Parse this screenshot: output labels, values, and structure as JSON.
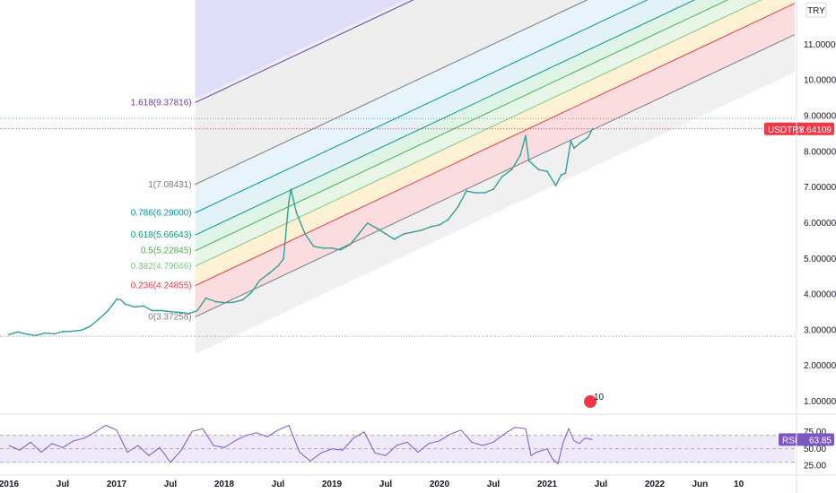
{
  "chart_data": {
    "type": "line",
    "symbol": "USDTRY",
    "currency": "TRY",
    "last_price": "8.64109",
    "price_axis": {
      "min": 0.7,
      "max": 12.0,
      "ticks": [
        {
          "v": 1,
          "label": "1.00000"
        },
        {
          "v": 2,
          "label": "2.00000"
        },
        {
          "v": 3,
          "label": "3.00000"
        },
        {
          "v": 4,
          "label": "4.00000"
        },
        {
          "v": 5,
          "label": "5.00000"
        },
        {
          "v": 6,
          "label": "6.00000"
        },
        {
          "v": 7,
          "label": "7.00000"
        },
        {
          "v": 8,
          "label": "8.00000"
        },
        {
          "v": 9,
          "label": "9.00000"
        },
        {
          "v": 10,
          "label": "10.00000"
        },
        {
          "v": 11,
          "label": "11.00000"
        }
      ],
      "reference_lines": [
        2.83,
        8.93
      ]
    },
    "x_axis": {
      "min": 2016.0,
      "max": 2023.3,
      "ticks": [
        {
          "t": 2016.0,
          "label": "2016"
        },
        {
          "t": 2016.5,
          "label": "Jul"
        },
        {
          "t": 2017.0,
          "label": "2017"
        },
        {
          "t": 2017.5,
          "label": "Jul"
        },
        {
          "t": 2018.0,
          "label": "2018"
        },
        {
          "t": 2018.5,
          "label": "Jul"
        },
        {
          "t": 2019.0,
          "label": "2019"
        },
        {
          "t": 2019.5,
          "label": "Jul"
        },
        {
          "t": 2020.0,
          "label": "2020"
        },
        {
          "t": 2020.5,
          "label": "Jul"
        },
        {
          "t": 2021.0,
          "label": "2021"
        },
        {
          "t": 2021.5,
          "label": "Jul"
        },
        {
          "t": 2022.0,
          "label": "2022"
        },
        {
          "t": 2022.42,
          "label": "Jun"
        },
        {
          "t": 2022.78,
          "label": "10"
        }
      ]
    },
    "series": [
      {
        "values": [
          [
            2016.0,
            2.88
          ],
          [
            2016.08,
            2.95
          ],
          [
            2016.17,
            2.89
          ],
          [
            2016.25,
            2.85
          ],
          [
            2016.33,
            2.92
          ],
          [
            2016.42,
            2.9
          ],
          [
            2016.5,
            2.96
          ],
          [
            2016.58,
            2.97
          ],
          [
            2016.67,
            3.0
          ],
          [
            2016.75,
            3.1
          ],
          [
            2016.83,
            3.3
          ],
          [
            2016.92,
            3.55
          ],
          [
            2017.0,
            3.87
          ],
          [
            2017.04,
            3.85
          ],
          [
            2017.08,
            3.73
          ],
          [
            2017.17,
            3.65
          ],
          [
            2017.25,
            3.68
          ],
          [
            2017.33,
            3.55
          ],
          [
            2017.42,
            3.55
          ],
          [
            2017.5,
            3.52
          ],
          [
            2017.58,
            3.5
          ],
          [
            2017.67,
            3.47
          ],
          [
            2017.75,
            3.55
          ],
          [
            2017.83,
            3.9
          ],
          [
            2017.92,
            3.8
          ],
          [
            2018.0,
            3.77
          ],
          [
            2018.08,
            3.78
          ],
          [
            2018.17,
            3.85
          ],
          [
            2018.25,
            4.05
          ],
          [
            2018.33,
            4.4
          ],
          [
            2018.42,
            4.6
          ],
          [
            2018.5,
            4.8
          ],
          [
            2018.55,
            5.0
          ],
          [
            2018.6,
            6.6
          ],
          [
            2018.62,
            6.95
          ],
          [
            2018.67,
            6.3
          ],
          [
            2018.75,
            5.7
          ],
          [
            2018.83,
            5.35
          ],
          [
            2018.92,
            5.3
          ],
          [
            2019.0,
            5.3
          ],
          [
            2019.08,
            5.25
          ],
          [
            2019.17,
            5.4
          ],
          [
            2019.25,
            5.7
          ],
          [
            2019.33,
            6.0
          ],
          [
            2019.42,
            5.85
          ],
          [
            2019.5,
            5.7
          ],
          [
            2019.58,
            5.55
          ],
          [
            2019.67,
            5.7
          ],
          [
            2019.75,
            5.75
          ],
          [
            2019.83,
            5.8
          ],
          [
            2019.92,
            5.9
          ],
          [
            2020.0,
            5.95
          ],
          [
            2020.08,
            6.1
          ],
          [
            2020.17,
            6.45
          ],
          [
            2020.25,
            6.9
          ],
          [
            2020.33,
            6.85
          ],
          [
            2020.42,
            6.85
          ],
          [
            2020.5,
            6.95
          ],
          [
            2020.58,
            7.3
          ],
          [
            2020.67,
            7.5
          ],
          [
            2020.75,
            7.9
          ],
          [
            2020.8,
            8.45
          ],
          [
            2020.83,
            7.75
          ],
          [
            2020.92,
            7.5
          ],
          [
            2021.0,
            7.45
          ],
          [
            2021.08,
            7.05
          ],
          [
            2021.13,
            7.35
          ],
          [
            2021.17,
            7.4
          ],
          [
            2021.22,
            8.3
          ],
          [
            2021.25,
            8.1
          ],
          [
            2021.33,
            8.3
          ],
          [
            2021.38,
            8.4
          ],
          [
            2021.42,
            8.64
          ]
        ]
      }
    ],
    "fibonacci_channel": {
      "levels": [
        {
          "ratio": "0",
          "label": "0(3.37258)",
          "price": 3.37258,
          "color": "#787b86"
        },
        {
          "ratio": "0.236",
          "label": "0.236(4.24855)",
          "price": 4.24855,
          "color": "#f23645"
        },
        {
          "ratio": "0.382",
          "label": "0.382(4.79046)",
          "price": 4.79046,
          "color": "#81c784"
        },
        {
          "ratio": "0.5",
          "label": "0.5(5.22845)",
          "price": 5.22845,
          "color": "#4caf50"
        },
        {
          "ratio": "0.618",
          "label": "0.618(5.66643)",
          "price": 5.66643,
          "color": "#089981"
        },
        {
          "ratio": "0.786",
          "label": "0.786(6.29000)",
          "price": 6.29,
          "color": "#0097a7"
        },
        {
          "ratio": "1",
          "label": "1(7.08431)",
          "price": 7.08431,
          "color": "#787b86"
        },
        {
          "ratio": "1.618",
          "label": "1.618(9.37816)",
          "price": 9.37816,
          "color": "#673ab7"
        }
      ],
      "anchor_time": 2017.73,
      "slope_per_year": 1.42
    },
    "rsi": {
      "label": "RSI",
      "value_label": "63.85",
      "ticks": [
        {
          "v": 75,
          "label": "75.00"
        },
        {
          "v": 50,
          "label": "50.00"
        },
        {
          "v": 25,
          "label": "25.00"
        }
      ],
      "bands": [
        70,
        30
      ],
      "values": [
        [
          2016.0,
          55
        ],
        [
          2016.1,
          48
        ],
        [
          2016.2,
          60
        ],
        [
          2016.3,
          45
        ],
        [
          2016.4,
          58
        ],
        [
          2016.5,
          52
        ],
        [
          2016.6,
          62
        ],
        [
          2016.7,
          66
        ],
        [
          2016.8,
          75
        ],
        [
          2016.9,
          85
        ],
        [
          2017.0,
          78
        ],
        [
          2017.1,
          45
        ],
        [
          2017.2,
          55
        ],
        [
          2017.3,
          40
        ],
        [
          2017.4,
          52
        ],
        [
          2017.5,
          30
        ],
        [
          2017.6,
          48
        ],
        [
          2017.7,
          76
        ],
        [
          2017.8,
          80
        ],
        [
          2017.9,
          55
        ],
        [
          2018.0,
          52
        ],
        [
          2018.1,
          62
        ],
        [
          2018.2,
          70
        ],
        [
          2018.3,
          74
        ],
        [
          2018.4,
          68
        ],
        [
          2018.5,
          78
        ],
        [
          2018.6,
          85
        ],
        [
          2018.7,
          45
        ],
        [
          2018.8,
          32
        ],
        [
          2018.9,
          44
        ],
        [
          2019.0,
          50
        ],
        [
          2019.1,
          48
        ],
        [
          2019.2,
          66
        ],
        [
          2019.3,
          75
        ],
        [
          2019.4,
          44
        ],
        [
          2019.5,
          40
        ],
        [
          2019.6,
          55
        ],
        [
          2019.7,
          60
        ],
        [
          2019.8,
          45
        ],
        [
          2019.9,
          58
        ],
        [
          2020.0,
          62
        ],
        [
          2020.1,
          72
        ],
        [
          2020.2,
          78
        ],
        [
          2020.3,
          60
        ],
        [
          2020.4,
          55
        ],
        [
          2020.5,
          60
        ],
        [
          2020.6,
          72
        ],
        [
          2020.7,
          82
        ],
        [
          2020.8,
          80
        ],
        [
          2020.85,
          40
        ],
        [
          2020.9,
          45
        ],
        [
          2021.0,
          50
        ],
        [
          2021.05,
          35
        ],
        [
          2021.1,
          28
        ],
        [
          2021.15,
          60
        ],
        [
          2021.2,
          80
        ],
        [
          2021.25,
          62
        ],
        [
          2021.3,
          58
        ],
        [
          2021.35,
          66
        ],
        [
          2021.42,
          63.85
        ]
      ]
    },
    "event_badge": {
      "label": "10",
      "time": 2021.4,
      "price": 1.0
    }
  }
}
